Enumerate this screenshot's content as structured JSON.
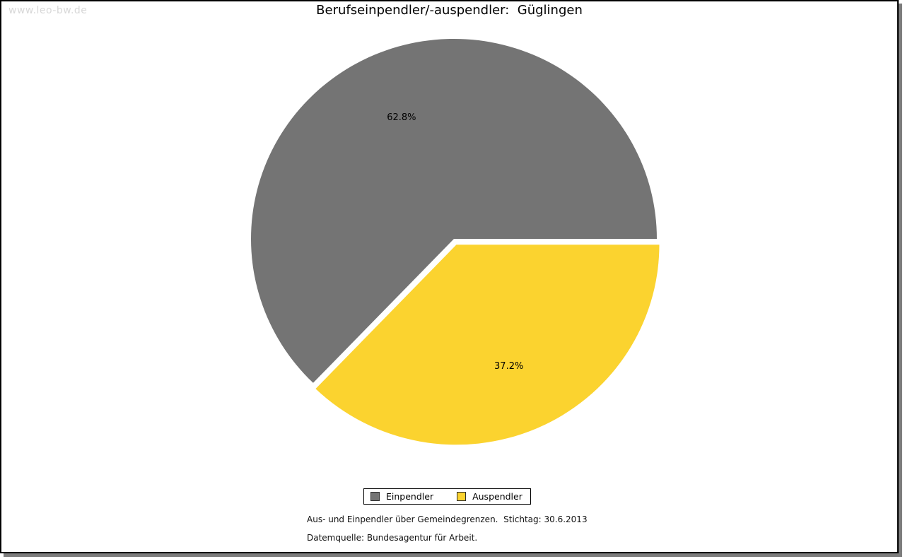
{
  "watermark": "www.leo-bw.de",
  "title": "Berufseinpendler/-auspendler:  Güglingen",
  "chart_data": {
    "type": "pie",
    "title": "Berufseinpendler/-auspendler: Güglingen",
    "slices": [
      {
        "label": "Einpendler",
        "value": 62.8,
        "display": "62.8%",
        "color": "#747474",
        "exploded": false
      },
      {
        "label": "Auspendler",
        "value": 37.2,
        "display": "37.2%",
        "color": "#fbd32f",
        "exploded": true
      }
    ],
    "legend_position": "bottom",
    "label_color": "#000000",
    "start_angle_deg": 0,
    "direction": "counterclockwise"
  },
  "legend": {
    "entries": [
      {
        "label": "Einpendler",
        "color": "#747474"
      },
      {
        "label": "Auspendler",
        "color": "#fbd32f"
      }
    ]
  },
  "footnotes": {
    "line1": "Aus- und Einpendler über Gemeindegrenzen.  Stichtag: 30.6.2013",
    "line2": "Datemquelle: Bundesagentur für Arbeit."
  },
  "frame": {
    "border_color": "#000000",
    "shadow_color": "#7d7d7d",
    "background": "#ffffff"
  }
}
